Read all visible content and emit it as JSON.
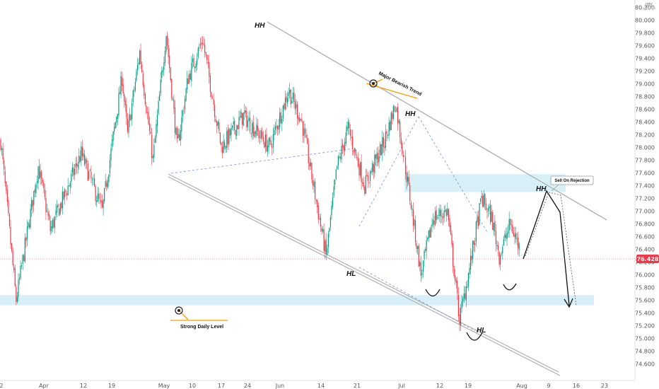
{
  "symbol": "JPY",
  "price_label": "76.428",
  "colors": {
    "up": "#089981",
    "down": "#f23645",
    "zone": "#d7f0f8",
    "orange": "#f59f00",
    "trend": "#b0b0b0",
    "dash": "#7b8fd6"
  },
  "chart_data": {
    "type": "candlestick",
    "ylim": [
      74.45,
      80.25
    ],
    "y_ticks": [
      "80.200",
      "80.000",
      "79.800",
      "79.600",
      "79.400",
      "79.200",
      "79.000",
      "78.800",
      "78.600",
      "78.400",
      "78.200",
      "78.000",
      "77.800",
      "77.600",
      "77.400",
      "77.200",
      "77.000",
      "76.800",
      "76.600",
      "76.400",
      "76.200",
      "76.000",
      "75.800",
      "75.600",
      "75.400",
      "75.200",
      "75.000",
      "74.800",
      "74.600"
    ],
    "x_ticks": [
      "2",
      "Apr",
      "12",
      "19",
      "May",
      "10",
      "17",
      "24",
      "Jun",
      "14",
      "21",
      "Jul",
      "12",
      "19",
      "Aug",
      "9",
      "16",
      "23"
    ],
    "last_price": 76.428,
    "pivots": [
      {
        "t": 0,
        "p": 78.1
      },
      {
        "t": 14,
        "p": 75.6
      },
      {
        "t": 34,
        "p": 77.7
      },
      {
        "t": 45,
        "p": 76.7
      },
      {
        "t": 73,
        "p": 77.9
      },
      {
        "t": 92,
        "p": 77.0
      },
      {
        "t": 110,
        "p": 79.1
      },
      {
        "t": 115,
        "p": 78.2
      },
      {
        "t": 126,
        "p": 79.5
      },
      {
        "t": 138,
        "p": 77.8
      },
      {
        "t": 150,
        "p": 79.8
      },
      {
        "t": 160,
        "p": 78.0
      },
      {
        "t": 170,
        "p": 79.1
      },
      {
        "t": 183,
        "p": 79.7
      },
      {
        "t": 200,
        "p": 78.0
      },
      {
        "t": 220,
        "p": 78.5
      },
      {
        "t": 244,
        "p": 78.0
      },
      {
        "t": 261,
        "p": 78.9
      },
      {
        "t": 273,
        "p": 78.4
      },
      {
        "t": 295,
        "p": 76.3
      },
      {
        "t": 305,
        "p": 77.7
      },
      {
        "t": 315,
        "p": 78.3
      },
      {
        "t": 330,
        "p": 77.4
      },
      {
        "t": 348,
        "p": 78.1
      },
      {
        "t": 358,
        "p": 78.7
      },
      {
        "t": 372,
        "p": 77.1
      },
      {
        "t": 381,
        "p": 76.0
      },
      {
        "t": 392,
        "p": 76.9
      },
      {
        "t": 405,
        "p": 77.0
      },
      {
        "t": 416,
        "p": 75.3
      },
      {
        "t": 425,
        "p": 76.1
      },
      {
        "t": 436,
        "p": 77.2
      },
      {
        "t": 445,
        "p": 76.9
      },
      {
        "t": 452,
        "p": 76.3
      },
      {
        "t": 462,
        "p": 76.8
      },
      {
        "t": 470,
        "p": 76.43
      }
    ]
  },
  "annotations": {
    "hh1": "HH",
    "hh2": "HH",
    "hh3": "HH",
    "hl1": "HL",
    "hl2": "HL",
    "major_trend": "Major Bearish Trend",
    "strong_level": "Strong Daily Level",
    "sell_rejection": "Sell On Rejection"
  }
}
